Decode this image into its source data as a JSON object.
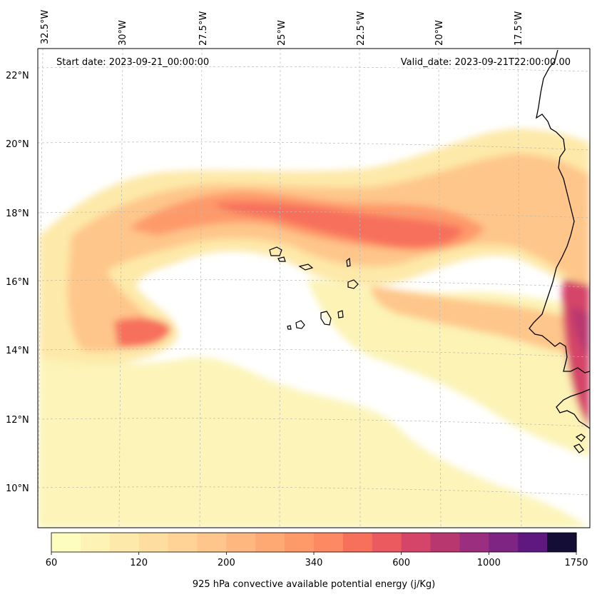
{
  "header": {
    "start_date": "Start date: 2023-09-21_00:00:00",
    "valid_date": "Valid_date: 2023-09-21T22:00:00.00"
  },
  "lon_labels": [
    "32.5°W",
    "30°W",
    "27.5°W",
    "25°W",
    "22.5°W",
    "20°W",
    "17.5°W"
  ],
  "lat_labels": [
    "22°N",
    "20°N",
    "18°N",
    "16°N",
    "14°N",
    "12°N",
    "10°N"
  ],
  "colorbar": {
    "label": "925 hPa convective available potential energy (j/Kg)",
    "tick_labels": [
      "60",
      "120",
      "200",
      "340",
      "600",
      "1000",
      "1750"
    ],
    "colors": [
      "#fcfdbf",
      "#fcf3b5",
      "#fde9a9",
      "#fddea0",
      "#fed395",
      "#fec68a",
      "#feb77e",
      "#fea973",
      "#fe9a6a",
      "#fc8961",
      "#f7705c",
      "#ea5a5f",
      "#d44569",
      "#b9376f",
      "#9c2e7f",
      "#7e2482",
      "#5f187f",
      "#140e36"
    ],
    "scale": "nonlinear"
  },
  "map": {
    "field": "925 hPa convective available potential energy",
    "units": "j/Kg",
    "colormap": "magma_r",
    "features": [
      "coastline",
      "Cape Verde islands",
      "gridlines dashed"
    ]
  }
}
